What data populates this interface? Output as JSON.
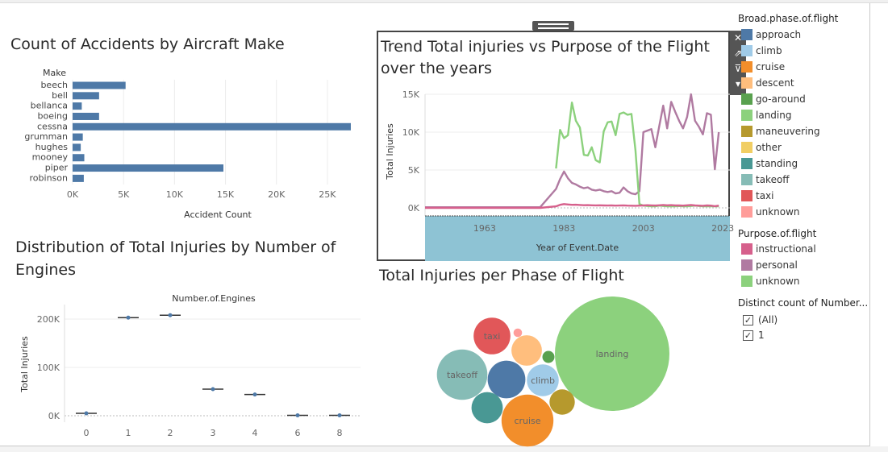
{
  "colors": {
    "bar": "#4e79a7",
    "band": "#8ec3d4",
    "purpose_instructional": "#d6608c",
    "purpose_personal": "#b07aa1",
    "purpose_unknown": "#8cd17d"
  },
  "panels": {
    "make_title": "Count of Accidents by Aircraft Make",
    "trend_title_line1": "Trend Total injuries vs Purpose of the Flight",
    "trend_title_line2": "over the years",
    "engines_title_line1": "Distribution of Total Injuries by Number of",
    "engines_title_line2": "Engines",
    "phase_title": "Total Injuries per Phase of Flight"
  },
  "toolbar": {
    "close": "✕",
    "goto": "⇗",
    "filter": "⊽",
    "more": "▾"
  },
  "legend_phase": {
    "title": "Broad.phase.of.flight",
    "items": [
      {
        "label": "approach",
        "color": "#4e79a7"
      },
      {
        "label": "climb",
        "color": "#a0cbe8"
      },
      {
        "label": "cruise",
        "color": "#f28e2b"
      },
      {
        "label": "descent",
        "color": "#ffbe7d"
      },
      {
        "label": "go-around",
        "color": "#59a14f"
      },
      {
        "label": "landing",
        "color": "#8cd17d"
      },
      {
        "label": "maneuvering",
        "color": "#b6992d"
      },
      {
        "label": "other",
        "color": "#f1ce63"
      },
      {
        "label": "standing",
        "color": "#499894"
      },
      {
        "label": "takeoff",
        "color": "#86bcb6"
      },
      {
        "label": "taxi",
        "color": "#e15759"
      },
      {
        "label": "unknown",
        "color": "#ff9d9a"
      }
    ]
  },
  "legend_purpose": {
    "title": "Purpose.of.flight",
    "items": [
      {
        "label": "instructional",
        "color": "#d6608c"
      },
      {
        "label": "personal",
        "color": "#b07aa1"
      },
      {
        "label": "unknown",
        "color": "#8cd17d"
      }
    ]
  },
  "filter": {
    "title": "Distinct count of Number...",
    "options": [
      {
        "label": "(All)",
        "checked": true
      },
      {
        "label": "1",
        "checked": true
      }
    ]
  },
  "chart_data": [
    {
      "type": "bar",
      "orientation": "horizontal",
      "title": "Count of Accidents by Aircraft Make",
      "xlabel": "Accident Count",
      "ylabel": "Make",
      "categories": [
        "beech",
        "bell",
        "bellanca",
        "boeing",
        "cessna",
        "grumman",
        "hughes",
        "mooney",
        "piper",
        "robinson"
      ],
      "values": [
        5200,
        2600,
        900,
        2600,
        27300,
        1000,
        800,
        1150,
        14800,
        1100
      ],
      "xlim": [
        0,
        27500
      ],
      "xticks": [
        "0K",
        "5K",
        "10K",
        "15K",
        "20K",
        "25K"
      ]
    },
    {
      "type": "line",
      "title": "Trend Total injuries vs Purpose of the Flight over the years",
      "xlabel": "Year of Event.Date",
      "ylabel": "Total Injuries",
      "xlim": [
        1948,
        2025
      ],
      "ylim": [
        0,
        15000
      ],
      "xticks": [
        "1963",
        "1983",
        "2003",
        "2023"
      ],
      "yticks": [
        "0K",
        "5K",
        "10K",
        "15K"
      ],
      "series": [
        {
          "name": "personal",
          "x": [
            1948,
            1962,
            1977,
            1981,
            1982,
            1983,
            1984,
            1985,
            1986,
            1987,
            1988,
            1989,
            1990,
            1991,
            1992,
            1993,
            1994,
            1995,
            1996,
            1997,
            1998,
            1999,
            2000,
            2001,
            2002,
            2003,
            2004,
            2005,
            2006,
            2007,
            2008,
            2009,
            2010,
            2011,
            2012,
            2013,
            2014,
            2015,
            2016,
            2017,
            2018,
            2019,
            2020,
            2021,
            2022
          ],
          "y": [
            80,
            80,
            80,
            2500,
            3800,
            4800,
            3900,
            3300,
            3100,
            2800,
            2600,
            2700,
            2400,
            2300,
            2400,
            2200,
            2100,
            2200,
            1900,
            2000,
            2700,
            2200,
            1900,
            1800,
            2200,
            10000,
            10200,
            10400,
            8000,
            10800,
            13500,
            10500,
            14000,
            12700,
            11500,
            10500,
            12000,
            15000,
            11500,
            10700,
            9700,
            12500,
            12300,
            5100,
            10000
          ]
        },
        {
          "name": "unknown",
          "x": [
            1981,
            1982,
            1983,
            1984,
            1985,
            1986,
            1987,
            1988,
            1989,
            1990,
            1991,
            1992,
            1993,
            1994,
            1995,
            1996,
            1997,
            1998,
            1999,
            2000,
            2001,
            2002,
            2003,
            2004,
            2005,
            2006,
            2007,
            2008,
            2009,
            2010,
            2011,
            2012,
            2013,
            2014,
            2015,
            2016,
            2017,
            2018,
            2019,
            2020,
            2021,
            2022
          ],
          "y": [
            5200,
            10300,
            9200,
            9600,
            13900,
            11500,
            10600,
            7000,
            6900,
            8000,
            6300,
            6000,
            10100,
            11300,
            11400,
            9600,
            12400,
            12600,
            12300,
            12400,
            7600,
            500,
            300,
            250,
            200,
            200,
            300,
            250,
            200,
            200,
            200,
            250,
            200,
            200,
            250,
            300,
            250,
            200,
            200,
            200,
            200,
            200
          ]
        },
        {
          "name": "instructional",
          "x": [
            1948,
            1962,
            1977,
            1981,
            1982,
            1983,
            1984,
            1985,
            1986,
            1987,
            1988,
            1989,
            1990,
            1991,
            1992,
            1993,
            1994,
            1995,
            1996,
            1997,
            1998,
            1999,
            2000,
            2001,
            2002,
            2003,
            2004,
            2005,
            2006,
            2007,
            2008,
            2009,
            2010,
            2011,
            2012,
            2013,
            2014,
            2015,
            2016,
            2017,
            2018,
            2019,
            2020,
            2021,
            2022
          ],
          "y": [
            0,
            0,
            0,
            200,
            400,
            500,
            450,
            400,
            420,
            380,
            350,
            360,
            340,
            330,
            340,
            320,
            310,
            320,
            300,
            310,
            330,
            300,
            290,
            280,
            300,
            320,
            350,
            330,
            310,
            340,
            380,
            340,
            360,
            330,
            320,
            300,
            340,
            380,
            320,
            300,
            280,
            320,
            300,
            220,
            300
          ]
        }
      ]
    },
    {
      "type": "scatter",
      "title": "Distribution of Total Injuries by Number of Engines",
      "xlabel": "Number.of.Engines",
      "ylabel": "Total Injuries",
      "categories": [
        "0",
        "1",
        "2",
        "3",
        "4",
        "6",
        "8"
      ],
      "values": [
        5000,
        203000,
        208000,
        55000,
        44000,
        800,
        800
      ],
      "ylim": [
        0,
        215000
      ],
      "yticks": [
        "0K",
        "100K",
        "200K"
      ]
    },
    {
      "type": "bubble",
      "title": "Total Injuries per Phase of Flight",
      "items": [
        {
          "label": "landing",
          "value": 90000
        },
        {
          "label": "cruise",
          "value": 18500
        },
        {
          "label": "takeoff",
          "value": 17500
        },
        {
          "label": "approach",
          "value": 9800
        },
        {
          "label": "taxi",
          "value": 9300
        },
        {
          "label": "descent",
          "value": 6400
        },
        {
          "label": "climb",
          "value": 7000
        },
        {
          "label": "standing",
          "value": 6700
        },
        {
          "label": "maneuvering",
          "value": 4400
        },
        {
          "label": "go-around",
          "value": 1000
        },
        {
          "label": "unknown",
          "value": 500
        }
      ],
      "text_labels": [
        "landing",
        "cruise",
        "takeoff",
        "taxi",
        "climb"
      ]
    }
  ]
}
